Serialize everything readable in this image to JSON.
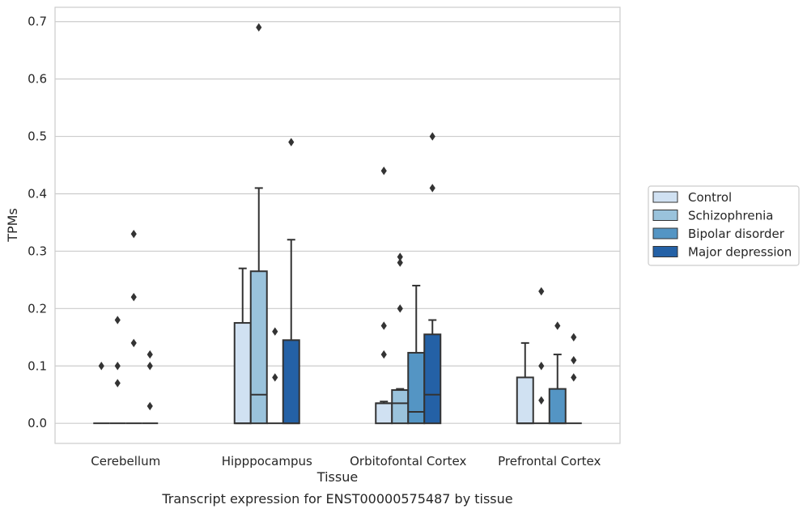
{
  "caption": "Transcript expression for ENST00000575487 by tissue",
  "colors": {
    "Control": "#d0e1f2",
    "Schizophrenia": "#9ac3dc",
    "Bipolar disorder": "#5495c4",
    "Major depression": "#2461a6",
    "edge": "#333333",
    "grid": "#cccccc",
    "frame": "#cccccc"
  },
  "chart_data": {
    "type": "box",
    "xlabel": "Tissue",
    "ylabel": "TPMs",
    "ylim": [
      -0.035,
      0.725
    ],
    "yticks": [
      0.0,
      0.1,
      0.2,
      0.3,
      0.4,
      0.5,
      0.6,
      0.7
    ],
    "ytick_labels": [
      "0.0",
      "0.1",
      "0.2",
      "0.3",
      "0.4",
      "0.5",
      "0.6",
      "0.7"
    ],
    "grid": true,
    "legend_position": "right",
    "categories": [
      "Cerebellum",
      "Hipppocampus",
      "Orbitofontal Cortex",
      "Prefrontal Cortex"
    ],
    "series": [
      {
        "name": "Control",
        "boxes": [
          {
            "q1": 0,
            "median": 0,
            "q3": 0,
            "whisker_low": 0,
            "whisker_high": 0,
            "outliers": [
              0.1
            ]
          },
          {
            "q1": 0,
            "median": 0,
            "q3": 0.175,
            "whisker_low": 0,
            "whisker_high": 0.27,
            "outliers": []
          },
          {
            "q1": 0,
            "median": 0.035,
            "q3": 0.035,
            "whisker_low": 0,
            "whisker_high": 0.038,
            "outliers": [
              0.12,
              0.17,
              0.44
            ]
          },
          {
            "q1": 0,
            "median": 0,
            "q3": 0.08,
            "whisker_low": 0,
            "whisker_high": 0.14,
            "outliers": []
          }
        ]
      },
      {
        "name": "Schizophrenia",
        "boxes": [
          {
            "q1": 0,
            "median": 0,
            "q3": 0,
            "whisker_low": 0,
            "whisker_high": 0,
            "outliers": [
              0.07,
              0.1,
              0.18
            ]
          },
          {
            "q1": 0,
            "median": 0.05,
            "q3": 0.265,
            "whisker_low": 0,
            "whisker_high": 0.41,
            "outliers": [
              0.69
            ]
          },
          {
            "q1": 0,
            "median": 0.035,
            "q3": 0.058,
            "whisker_low": 0,
            "whisker_high": 0.06,
            "outliers": [
              0.2,
              0.28,
              0.29
            ]
          },
          {
            "q1": 0,
            "median": 0,
            "q3": 0,
            "whisker_low": 0,
            "whisker_high": 0,
            "outliers": [
              0.04,
              0.1,
              0.23
            ]
          }
        ]
      },
      {
        "name": "Bipolar disorder",
        "boxes": [
          {
            "q1": 0,
            "median": 0,
            "q3": 0,
            "whisker_low": 0,
            "whisker_high": 0,
            "outliers": [
              0.14,
              0.22,
              0.33
            ]
          },
          {
            "q1": 0,
            "median": 0,
            "q3": 0,
            "whisker_low": 0,
            "whisker_high": 0,
            "outliers": [
              0.08,
              0.16
            ]
          },
          {
            "q1": 0,
            "median": 0.02,
            "q3": 0.123,
            "whisker_low": 0,
            "whisker_high": 0.24,
            "outliers": []
          },
          {
            "q1": 0,
            "median": 0,
            "q3": 0.06,
            "whisker_low": 0,
            "whisker_high": 0.12,
            "outliers": [
              0.17
            ]
          }
        ]
      },
      {
        "name": "Major depression",
        "boxes": [
          {
            "q1": 0,
            "median": 0,
            "q3": 0,
            "whisker_low": 0,
            "whisker_high": 0,
            "outliers": [
              0.03,
              0.1,
              0.12
            ]
          },
          {
            "q1": 0,
            "median": 0,
            "q3": 0.145,
            "whisker_low": 0,
            "whisker_high": 0.32,
            "outliers": [
              0.49
            ]
          },
          {
            "q1": 0,
            "median": 0.05,
            "q3": 0.155,
            "whisker_low": 0,
            "whisker_high": 0.18,
            "outliers": [
              0.41,
              0.5
            ]
          },
          {
            "q1": 0,
            "median": 0,
            "q3": 0,
            "whisker_low": 0,
            "whisker_high": 0,
            "outliers": [
              0.08,
              0.11,
              0.15
            ]
          }
        ]
      }
    ]
  }
}
